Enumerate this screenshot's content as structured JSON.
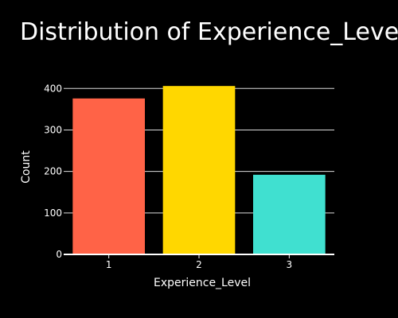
{
  "chart_data": {
    "type": "bar",
    "title": "Distribution of Experience_Level",
    "xlabel": "Experience_Level",
    "ylabel": "Count",
    "categories": [
      "1",
      "2",
      "3"
    ],
    "values": [
      376,
      406,
      192
    ],
    "colors": [
      "#ff6347",
      "#ffd700",
      "#40e0d0"
    ],
    "ylim": [
      0,
      460
    ],
    "yticks": [
      0,
      100,
      200,
      300,
      400
    ],
    "grid": true,
    "background": "#000000",
    "text_color": "#ffffff",
    "grid_color": "#dcdcdc"
  }
}
